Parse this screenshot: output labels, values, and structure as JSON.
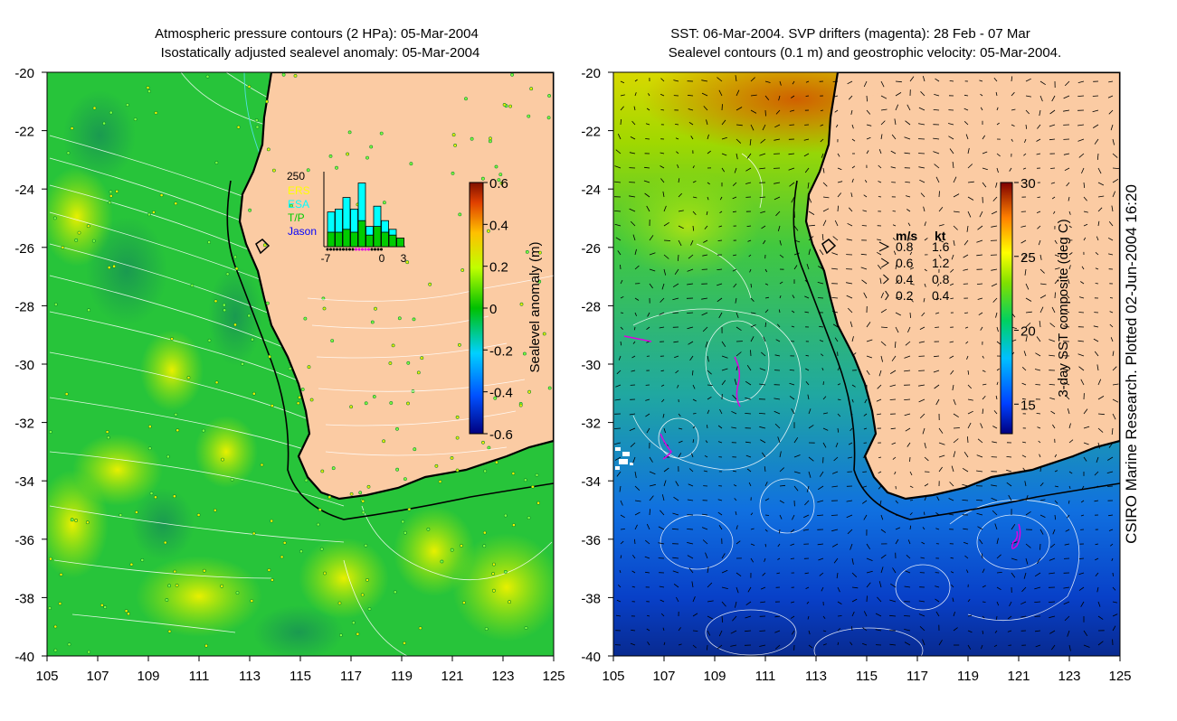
{
  "left_panel": {
    "title_line1": "Atmospheric pressure contours (2 HPa): 05-Mar-2004",
    "title_line2": "Isostatically adjusted sealevel anomaly: 05-Mar-2004",
    "colorbar": {
      "label": "Sealevel anomaly (m)",
      "ticks": [
        "0.6",
        "0.4",
        "0.2",
        "0",
        "-0.2",
        "-0.4",
        "-0.6"
      ]
    },
    "inset": {
      "ymax_label": "250",
      "legend": [
        "ERS",
        "ESA",
        "T/P",
        "Jason"
      ],
      "legend_colors": [
        "#ffff00",
        "#00ffff",
        "#00cc00",
        "#0000ff"
      ],
      "x_ticks": [
        "-7",
        "0",
        "3"
      ],
      "bars_cyan": [
        120,
        130,
        170,
        130,
        220,
        70,
        140,
        90,
        60,
        30
      ],
      "bars_green": [
        50,
        50,
        60,
        50,
        90,
        40,
        70,
        50,
        40,
        30
      ]
    }
  },
  "right_panel": {
    "title_line1": "SST: 06-Mar-2004. SVP drifters (magenta): 28 Feb - 07 Mar",
    "title_line2": "Sealevel contours (0.1 m) and geostrophic velocity: 05-Mar-2004.",
    "colorbar": {
      "label": "3-day SST composite (deg C)",
      "ticks": [
        "30",
        "25",
        "20",
        "15"
      ]
    },
    "velocity_legend": {
      "header_ms": "m/s",
      "header_kt": "kt",
      "rows": [
        {
          "ms": "0.8",
          "kt": "1.6"
        },
        {
          "ms": "0.6",
          "kt": "1.2"
        },
        {
          "ms": "0.4",
          "kt": "0.8"
        },
        {
          "ms": "0.2",
          "kt": "0.4"
        }
      ]
    }
  },
  "axes": {
    "lat_ticks": [
      "-20",
      "-22",
      "-24",
      "-26",
      "-28",
      "-30",
      "-32",
      "-34",
      "-36",
      "-38",
      "-40"
    ],
    "lon_ticks": [
      "105",
      "107",
      "109",
      "111",
      "113",
      "115",
      "117",
      "119",
      "121",
      "123",
      "125"
    ]
  },
  "credit": "CSIRO Marine Research. Plotted 02-Jun-2004 16:20",
  "colors": {
    "land": "#fbcba3",
    "coast": "#000000",
    "ocean_base_left": "#27c43a",
    "ocean_base_right": "#2ec24a"
  }
}
